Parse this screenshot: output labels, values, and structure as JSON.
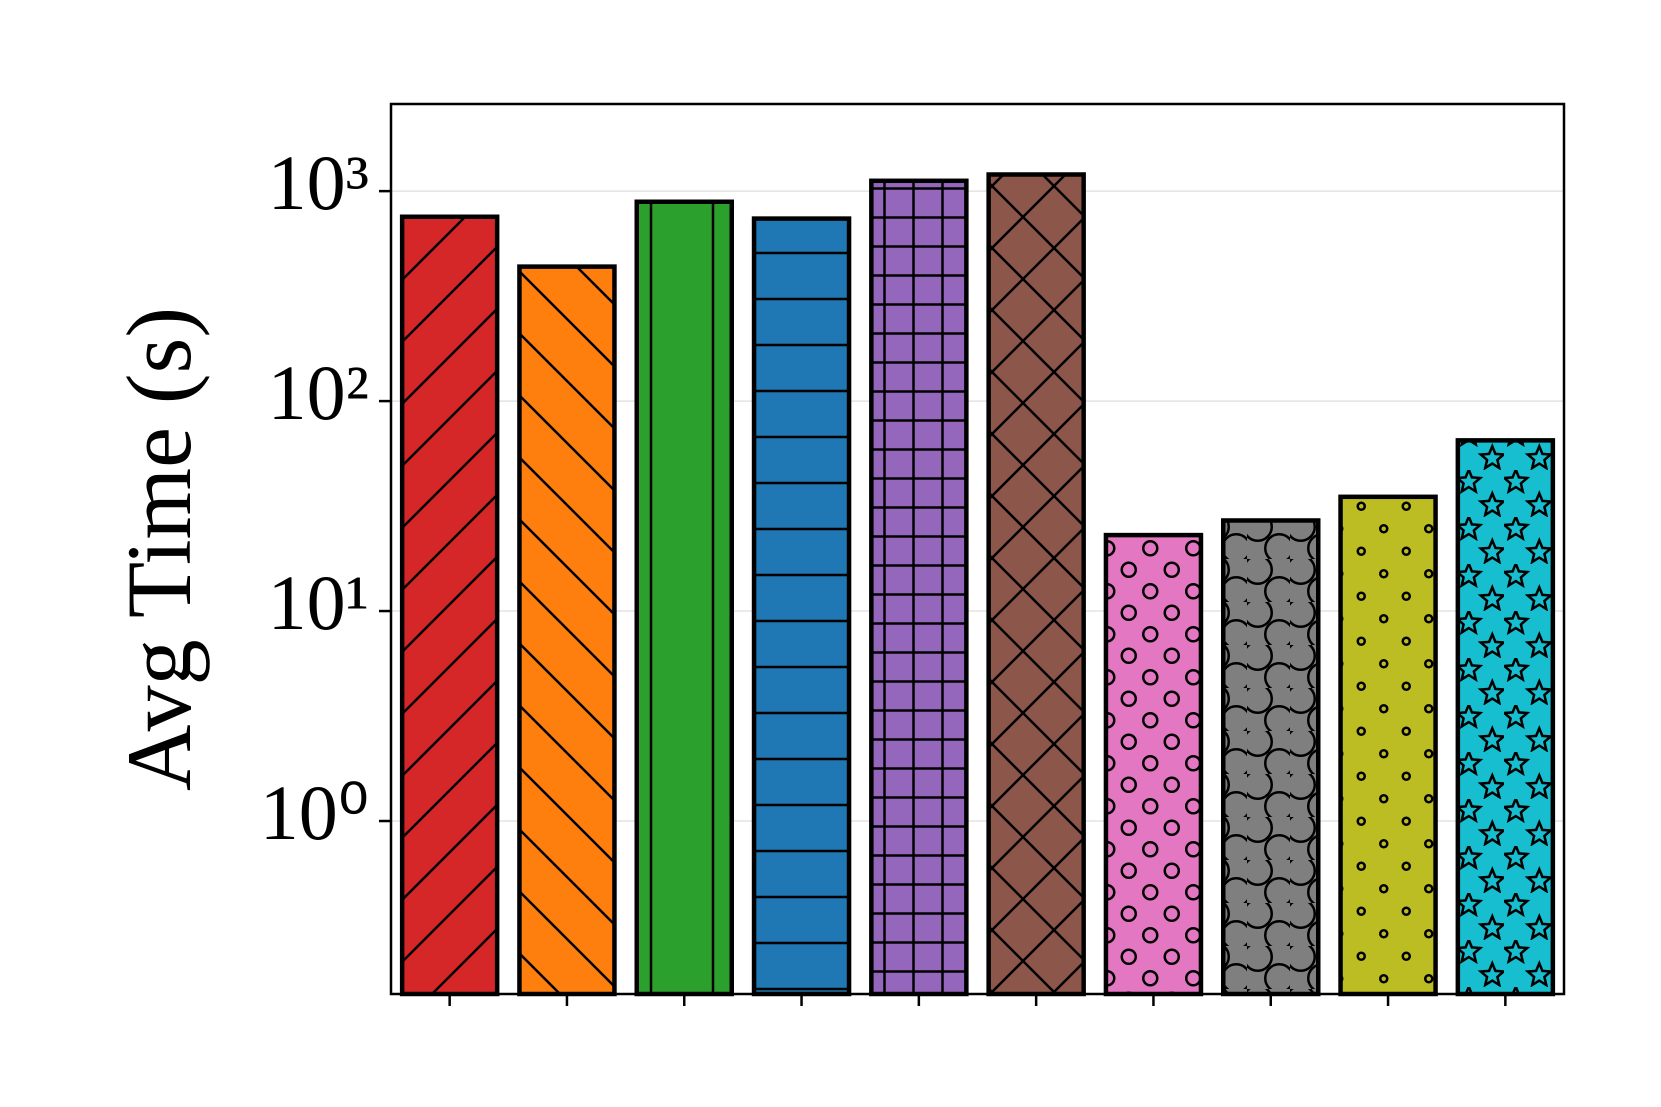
{
  "chart_data": {
    "type": "bar",
    "y_label": "Avg Time (s)",
    "categories": [
      null,
      null,
      null,
      null,
      null,
      null,
      null,
      null,
      null,
      null
    ],
    "values": [
      755,
      437,
      890,
      740,
      1120,
      1200,
      23,
      27,
      35,
      65
    ],
    "colors": [
      "#d62728",
      "#ff7f0e",
      "#2ca02c",
      "#1f77b4",
      "#9467bd",
      "#8c564b",
      "#e377c2",
      "#7f7f7f",
      "#bcbd22",
      "#17becf"
    ],
    "hatches": [
      "/",
      "\\",
      "|",
      "-",
      "+",
      "x",
      "o",
      "O",
      ".",
      "*"
    ],
    "log_scale": true,
    "ylim": [
      0.15,
      2600
    ],
    "yticks": [
      {
        "value": 1,
        "label": "10⁰"
      },
      {
        "value": 10,
        "label": "10¹"
      },
      {
        "value": 100,
        "label": "10²"
      },
      {
        "value": 1000,
        "label": "10³"
      }
    ],
    "grid": true
  }
}
